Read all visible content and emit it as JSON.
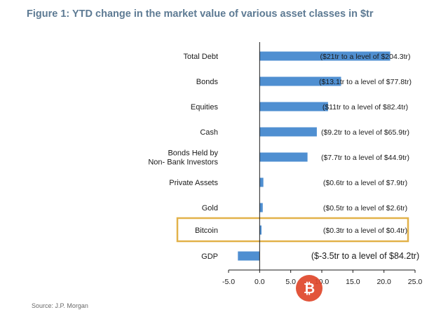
{
  "figure": {
    "title": "Figure 1: YTD change in the market value of various asset classes in $tr",
    "source": "Source: J.P. Morgan"
  },
  "chart_data": {
    "type": "bar",
    "orientation": "horizontal",
    "categories": [
      "Total Debt",
      "Bonds",
      "Equities",
      "Cash",
      "Bonds Held by\nNon- Bank Investors",
      "Private Assets",
      "Gold",
      "Bitcoin",
      "GDP"
    ],
    "values": [
      21,
      13.1,
      11,
      9.2,
      7.7,
      0.6,
      0.5,
      0.3,
      -3.5
    ],
    "data_labels": [
      "($21tr to a level of $204.3tr)",
      "($13.1tr to a level of $77.8tr)",
      "($11tr to a level of $82.4tr)",
      "($9.2tr to a level of $65.9tr)",
      "($7.7tr to a level of $44.9tr)",
      "($0.6tr to a level of $7.9tr)",
      "($0.5tr to a level of $2.6tr)",
      "($0.3tr to a level of $0.4tr)",
      "($-3.5tr to a level of $84.2tr)"
    ],
    "highlighted_category": "Bitcoin",
    "xlim": [
      -5,
      25
    ],
    "xticks": [
      "-5.0",
      "0.0",
      "5.0",
      "10.0",
      "15.0",
      "20.0",
      "25.0"
    ],
    "grid": false,
    "legend": "none",
    "colors": {
      "bar": "#4f8fd1",
      "highlight_box": "#e2b24a",
      "title": "#5d7a93",
      "watermark": "#e0462a"
    }
  },
  "watermark": {
    "icon": "bitcoin-logo-icon",
    "glyph": "₿"
  }
}
